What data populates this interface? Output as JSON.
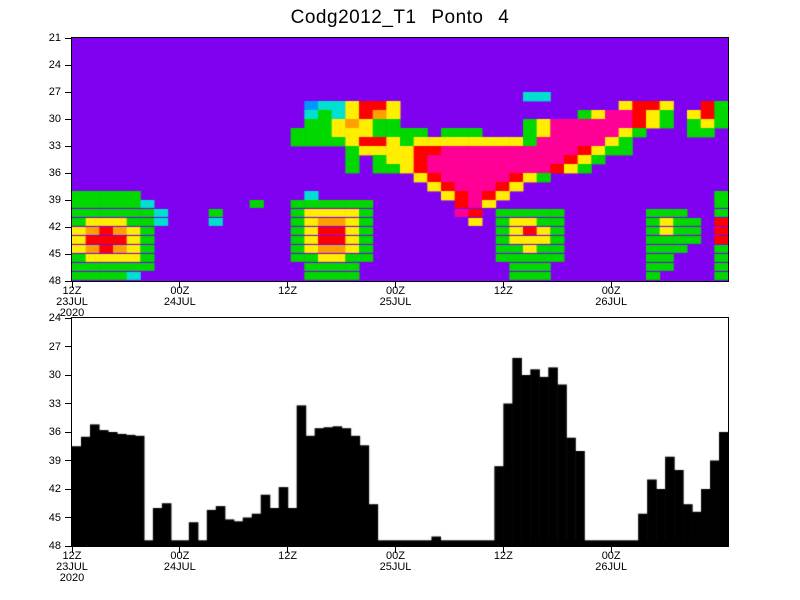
{
  "title": "Codg2012_T1 Ponto 4",
  "colors": {
    "page_background": "#FFFFFF",
    "frame": "#000000",
    "heatmap_background": "#8000F0",
    "area_fill": "#000000"
  },
  "x_axis": {
    "total_hours": 73,
    "ticks": [
      {
        "hour": 0,
        "lines": [
          "12Z",
          "23JUL",
          "2020"
        ]
      },
      {
        "hour": 12,
        "lines": [
          "00Z",
          "24JUL"
        ]
      },
      {
        "hour": 24,
        "lines": [
          "12Z"
        ]
      },
      {
        "hour": 36,
        "lines": [
          "00Z",
          "25JUL"
        ]
      },
      {
        "hour": 48,
        "lines": [
          "12Z"
        ]
      },
      {
        "hour": 60,
        "lines": [
          "00Z",
          "26JUL"
        ]
      }
    ]
  },
  "chart_data": [
    {
      "type": "heatmap",
      "panel": "top",
      "ylim": [
        21,
        48
      ],
      "y_ticks": [
        21,
        24,
        27,
        30,
        33,
        36,
        39,
        42,
        45,
        48
      ],
      "y_inverted": true,
      "x_hours": 73,
      "grid_cols": 48,
      "grid_rows": 27,
      "palette": [
        "#8000F0",
        "#2020FF",
        "#0098FF",
        "#00E0D0",
        "#00D800",
        "#7CFF00",
        "#FFEE00",
        "#FFA000",
        "#FF0000",
        "#FF0096"
      ],
      "rows_encoding": "run-length, colorIndex x count, left to right per 1-unit row from value 21 to 48",
      "rows": [
        "0x48",
        "0x48",
        "0x48",
        "0x48",
        "0x48",
        "0x48",
        "0x33,3x2,0x13",
        "0x17,2x1,3x2,6x1,8x2,6x1,0x16,6x1,8x2,6x1,0x2,8x1,4x1",
        "0x17,3x1,4x1,3x1,6x1,8x1,7x1,6x1,0x13,4x1,6x1,9x2,8x1,6x1,4x1,0x1,6x1,8x1,4x1",
        "0x17,4x2,6x1,7x1,6x1,4x2,0x9,4x1,6x1,9x6,8x1,6x1,4x1,0x1,4x1,6x1,4x1",
        "0x16,4x3,6x3,4x4,0x1,4x3,0x3,4x1,6x1,9x5,6x1,4x1,0x3,4x2,0x1",
        "0x16,4x4,6x1,8x2,6x1,4x1,6x8,4x1,9x5,6x1,4x1,0x7",
        "0x20,4x1,6x4,8x2,9x10,8x1,6x1,4x2,0x7",
        "0x20,4x1,0x1,4x1,6x2,8x1,9x10,8x1,6x1,4x1,0x9",
        "0x20,4x1,0x1,4x2,6x1,8x1,9x9,8x1,6x1,4x1,0x10",
        "0x25,6x1,8x1,9x5,8x1,6x1,4x1,0x13",
        "0x26,6x1,8x1,9x3,8x1,6x1,0x15",
        "4x5,0x12,3x1,0x9,6x1,8x1,9x1,8x1,6x1,0x15,4x1",
        "4x5,3x1,0x7,4x1,0x2,4x6,0x6,8x1,9x1,6x1,0x16,4x1",
        "4x6,3x1,0x3,4x1,0x5,4x1,6x4,4x1,0x6,9x1,8x1,0x1,4x5,0x6,4x3,0x2,4x1",
        "4x1,6x3,4x2,3x1,0x3,3x1,0x5,4x1,6x1,7x2,6x1,4x1,0x7,6x1,0x1,4x1,6x2,4x2,0x6,4x1,6x1,4x2,0x1,8x1",
        "6x1,7x1,8x1,7x1,6x1,4x1,0x10,4x1,6x1,8x2,6x1,4x1,0x9,4x1,6x1,8x1,6x1,4x1,0x6,4x1,6x1,4x2,0x1,8x1",
        "6x1,8x3,6x1,4x1,0x10,4x1,6x1,8x2,6x1,4x1,0x9,4x1,6x3,4x1,0x6,4x4,0x1,8x1",
        "6x1,7x1,8x1,7x1,6x1,4x1,0x10,4x1,6x1,7x2,6x1,4x1,0x9,4x2,6x1,4x2,0x6,4x3,0x2,4x1",
        "4x1,6x4,4x1,0x10,4x2,6x2,4x2,0x9,4x5,0x6,4x2,0x3,4x1",
        "4x6,0x11,4x4,0x11,4x3,0x7,4x2,0x3,4x1",
        "4x4,3x1,0x12,4x4,0x11,4x3,0x7,4x1,0x4,4x1"
      ]
    },
    {
      "type": "area",
      "panel": "bottom",
      "ylim": [
        24,
        48
      ],
      "y_ticks": [
        24,
        27,
        30,
        33,
        36,
        39,
        42,
        45,
        48
      ],
      "y_inverted": true,
      "baseline": 48,
      "baseline_strip_top": 47.4,
      "x_step_hours": 1,
      "fill": "#000000",
      "values": [
        37.5,
        36.5,
        35.2,
        35.8,
        36.0,
        36.2,
        36.3,
        36.4,
        47.5,
        44.0,
        43.5,
        47.5,
        47.5,
        45.5,
        47.5,
        44.2,
        43.8,
        45.2,
        45.4,
        45.0,
        44.6,
        42.6,
        44.0,
        41.8,
        44.0,
        33.2,
        36.4,
        35.6,
        35.5,
        35.4,
        35.6,
        36.4,
        37.4,
        43.6,
        47.5,
        47.5,
        47.5,
        47.5,
        47.5,
        47.5,
        47.0,
        47.5,
        47.5,
        47.5,
        47.5,
        47.5,
        47.5,
        39.6,
        33.0,
        28.2,
        30.0,
        29.4,
        30.2,
        29.2,
        31.0,
        36.6,
        38.0,
        47.5,
        47.5,
        47.5,
        47.5,
        47.5,
        47.5,
        44.6,
        41.0,
        42.0,
        38.6,
        40.0,
        43.6,
        44.4,
        42.0,
        39.0,
        36.0,
        35.6
      ]
    }
  ]
}
